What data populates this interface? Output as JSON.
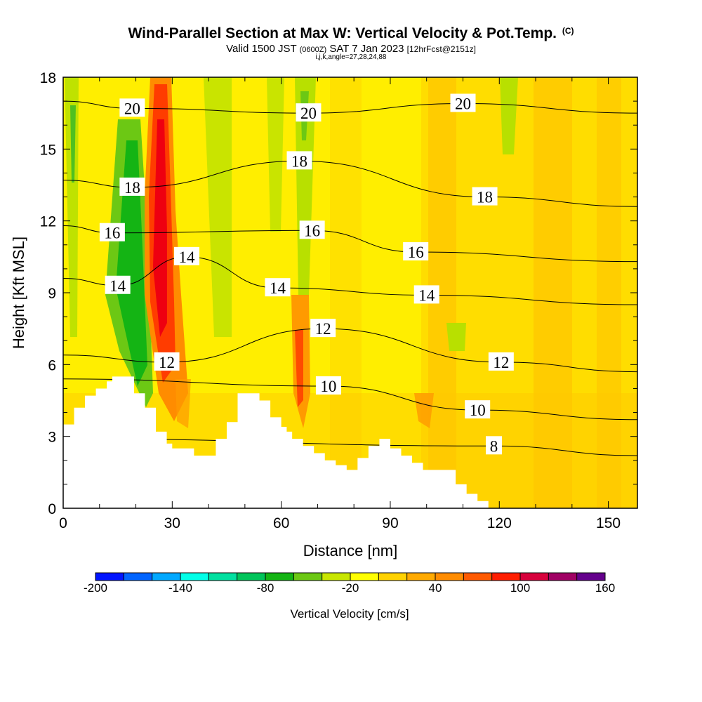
{
  "header": {
    "title": "Wind-Parallel Section at Max W: Vertical Velocity & Pot.Temp.",
    "copyright": "(C)",
    "valid_prefix": "Valid 1500 JST",
    "valid_utc": "(0600Z)",
    "valid_date": "SAT 7 Jan 2023",
    "forecast": "[12hrFcst@2151z]",
    "indices": "i,j,k,angle=27,28,24,88"
  },
  "chart_data": {
    "type": "heatmap",
    "xlabel": "Distance [nm]",
    "ylabel": "Height [Kft MSL]",
    "xlim": [
      0,
      158
    ],
    "ylim": [
      0,
      18
    ],
    "x_ticks": [
      0,
      30,
      60,
      90,
      120,
      150
    ],
    "y_ticks": [
      0,
      3,
      6,
      9,
      12,
      15,
      18
    ],
    "grid": false,
    "terrain": {
      "x": [
        0,
        3,
        3,
        6,
        6,
        9,
        9,
        12,
        12,
        13.5,
        13.5,
        15,
        15,
        16.5,
        16.5,
        19.5,
        19.5,
        22.5,
        22.5,
        25.5,
        25.5,
        28.5,
        28.5,
        30,
        30,
        36,
        36,
        42,
        42,
        45,
        45,
        48,
        48,
        54,
        54,
        57,
        57,
        60,
        60,
        61.5,
        61.5,
        63,
        63,
        66,
        66,
        69,
        69,
        72,
        72,
        75,
        75,
        78,
        78,
        81,
        81,
        84,
        84,
        87,
        87,
        90,
        90,
        93,
        93,
        96,
        96,
        99,
        99,
        108,
        108,
        111,
        111,
        114,
        114,
        117,
        117
      ],
      "height_kft": [
        3.5,
        3.5,
        4.2,
        4.2,
        4.7,
        4.7,
        5.0,
        5.0,
        5.3,
        5.3,
        5.5,
        5.5,
        5.5,
        5.5,
        5.5,
        5.5,
        4.8,
        4.8,
        4.2,
        4.2,
        3.2,
        3.2,
        2.7,
        2.7,
        2.5,
        2.5,
        2.2,
        2.2,
        2.9,
        2.9,
        3.6,
        3.6,
        4.8,
        4.8,
        4.5,
        4.5,
        3.8,
        3.8,
        3.4,
        3.4,
        3.2,
        3.2,
        2.9,
        2.9,
        2.6,
        2.6,
        2.3,
        2.3,
        2.0,
        2.0,
        1.8,
        1.8,
        1.6,
        1.6,
        2.1,
        2.1,
        2.6,
        2.6,
        2.9,
        2.9,
        2.5,
        2.5,
        2.2,
        2.2,
        1.9,
        1.9,
        1.6,
        1.6,
        1.0,
        1.0,
        0.6,
        0.6,
        0.3,
        0.3,
        0
      ]
    },
    "vertical_velocity_colorbar": {
      "label": "Vertical Velocity [cm/s]",
      "tick_labels": [
        -200,
        -140,
        -80,
        -20,
        40,
        100,
        160
      ],
      "levels": [
        -200,
        -180,
        -160,
        -140,
        -120,
        -100,
        -80,
        -60,
        -40,
        -20,
        0,
        20,
        40,
        60,
        80,
        100,
        120,
        140,
        160
      ],
      "colors": [
        "#0014ff",
        "#0064ff",
        "#00a8ff",
        "#00ffe8",
        "#00e0a0",
        "#00c45a",
        "#14b414",
        "#6cc814",
        "#c8e600",
        "#ffff00",
        "#ffd200",
        "#ffaa00",
        "#ff8c00",
        "#ff5a00",
        "#ff1e00",
        "#d7003c",
        "#a00064",
        "#64008c"
      ]
    },
    "potential_temperature_contour_labels": [
      {
        "text": "20",
        "x": 19.0,
        "y": 16.7
      },
      {
        "text": "20",
        "x": 67.5,
        "y": 16.5
      },
      {
        "text": "20",
        "x": 110.0,
        "y": 16.9
      },
      {
        "text": "18",
        "x": 19.0,
        "y": 13.4
      },
      {
        "text": "18",
        "x": 65.0,
        "y": 14.5
      },
      {
        "text": "18",
        "x": 116.0,
        "y": 13.0
      },
      {
        "text": "16",
        "x": 13.5,
        "y": 11.5
      },
      {
        "text": "16",
        "x": 68.5,
        "y": 11.6
      },
      {
        "text": "16",
        "x": 97.0,
        "y": 10.7
      },
      {
        "text": "14",
        "x": 15.0,
        "y": 9.3
      },
      {
        "text": "14",
        "x": 34.0,
        "y": 10.5
      },
      {
        "text": "14",
        "x": 59.0,
        "y": 9.2
      },
      {
        "text": "14",
        "x": 100.0,
        "y": 8.9
      },
      {
        "text": "12",
        "x": 28.5,
        "y": 6.1
      },
      {
        "text": "12",
        "x": 71.5,
        "y": 7.5
      },
      {
        "text": "12",
        "x": 120.5,
        "y": 6.1
      },
      {
        "text": "10",
        "x": 73.0,
        "y": 5.1
      },
      {
        "text": "10",
        "x": 114.0,
        "y": 4.1
      },
      {
        "text": "8",
        "x": 118.5,
        "y": 2.6
      }
    ]
  }
}
